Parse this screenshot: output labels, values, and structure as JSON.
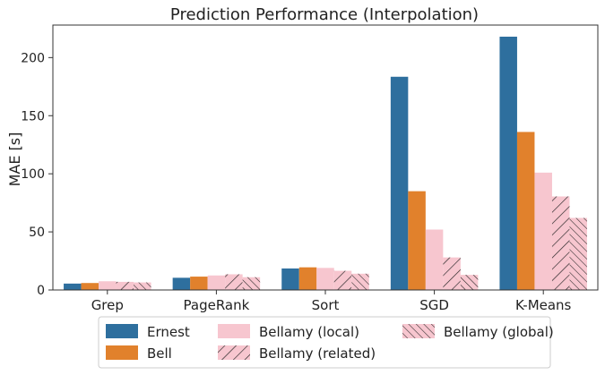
{
  "chart_data": {
    "type": "bar",
    "title": "Prediction Performance (Interpolation)",
    "xlabel": "",
    "ylabel": "MAE [s]",
    "ylim": [
      0,
      228
    ],
    "yticks": [
      0,
      50,
      100,
      150,
      200
    ],
    "grid": false,
    "legend_position": "bottom",
    "categories": [
      "Grep",
      "PageRank",
      "Sort",
      "SGD",
      "K-Means"
    ],
    "series": [
      {
        "name": "Ernest",
        "color": "#2e6f9e",
        "hatch": "none",
        "values": [
          5.5,
          10.5,
          18.5,
          183.5,
          218
        ]
      },
      {
        "name": "Bell",
        "color": "#e1812c",
        "hatch": "none",
        "values": [
          6,
          11.5,
          19.5,
          85,
          136
        ]
      },
      {
        "name": "Bellamy (local)",
        "color": "#f7c6cf",
        "hatch": "none",
        "values": [
          7.5,
          12.5,
          19,
          52,
          101
        ]
      },
      {
        "name": "Bellamy (related)",
        "color": "#f7c6cf",
        "hatch": "forward",
        "values": [
          7,
          13.5,
          16.5,
          28,
          80.5
        ]
      },
      {
        "name": "Bellamy (global)",
        "color": "#f7c6cf",
        "hatch": "back",
        "values": [
          6.5,
          11,
          14,
          13,
          62
        ]
      }
    ]
  }
}
